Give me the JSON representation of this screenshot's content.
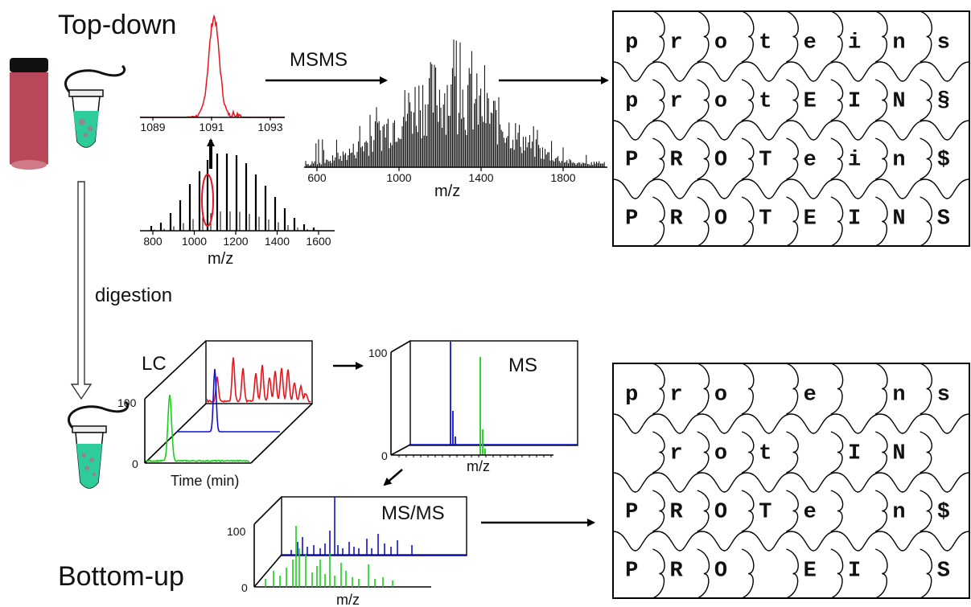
{
  "titles": {
    "top_down": "Top-down",
    "bottom_up": "Bottom-up"
  },
  "labels": {
    "msms_arrow": "MSMS",
    "digestion": "digestion",
    "lc": "LC",
    "ms": "MS",
    "ms_ms": "MS/MS"
  },
  "axes": {
    "mz": "m/z",
    "time": "Time (min)",
    "y100": "100",
    "y0": "0"
  },
  "ms1_ticks": [
    "800",
    "1000",
    "1200",
    "1400",
    "1600"
  ],
  "zoom_ticks": [
    "1089",
    "1091",
    "1093"
  ],
  "msms_ticks": [
    "600",
    "1000",
    "1400",
    "1800"
  ],
  "top_grid": [
    [
      "p",
      "r",
      "o",
      "t",
      "e",
      "i",
      "n",
      "s"
    ],
    [
      "p",
      "r",
      "o",
      "t",
      "E",
      "I",
      "N",
      "§"
    ],
    [
      "P",
      "R",
      "O",
      "T",
      "e",
      "i",
      "n",
      "$"
    ],
    [
      "P",
      "R",
      "O",
      "T",
      "E",
      "I",
      "N",
      "S"
    ]
  ],
  "bottom_grid": [
    [
      "p",
      "r",
      "o",
      "",
      "e",
      "",
      "n",
      "s"
    ],
    [
      "",
      "r",
      "o",
      "t",
      "",
      "I",
      "N",
      ""
    ],
    [
      "P",
      "R",
      "O",
      "T",
      "e",
      "",
      "n",
      "$"
    ],
    [
      "P",
      "R",
      "O",
      "",
      "E",
      "I",
      "",
      "S"
    ]
  ],
  "colors": {
    "red": "#e8141b",
    "blue": "#1010d0",
    "green": "#18d018",
    "black": "#000000",
    "vial": "#b8485a",
    "tube": "#2ecc9a"
  }
}
